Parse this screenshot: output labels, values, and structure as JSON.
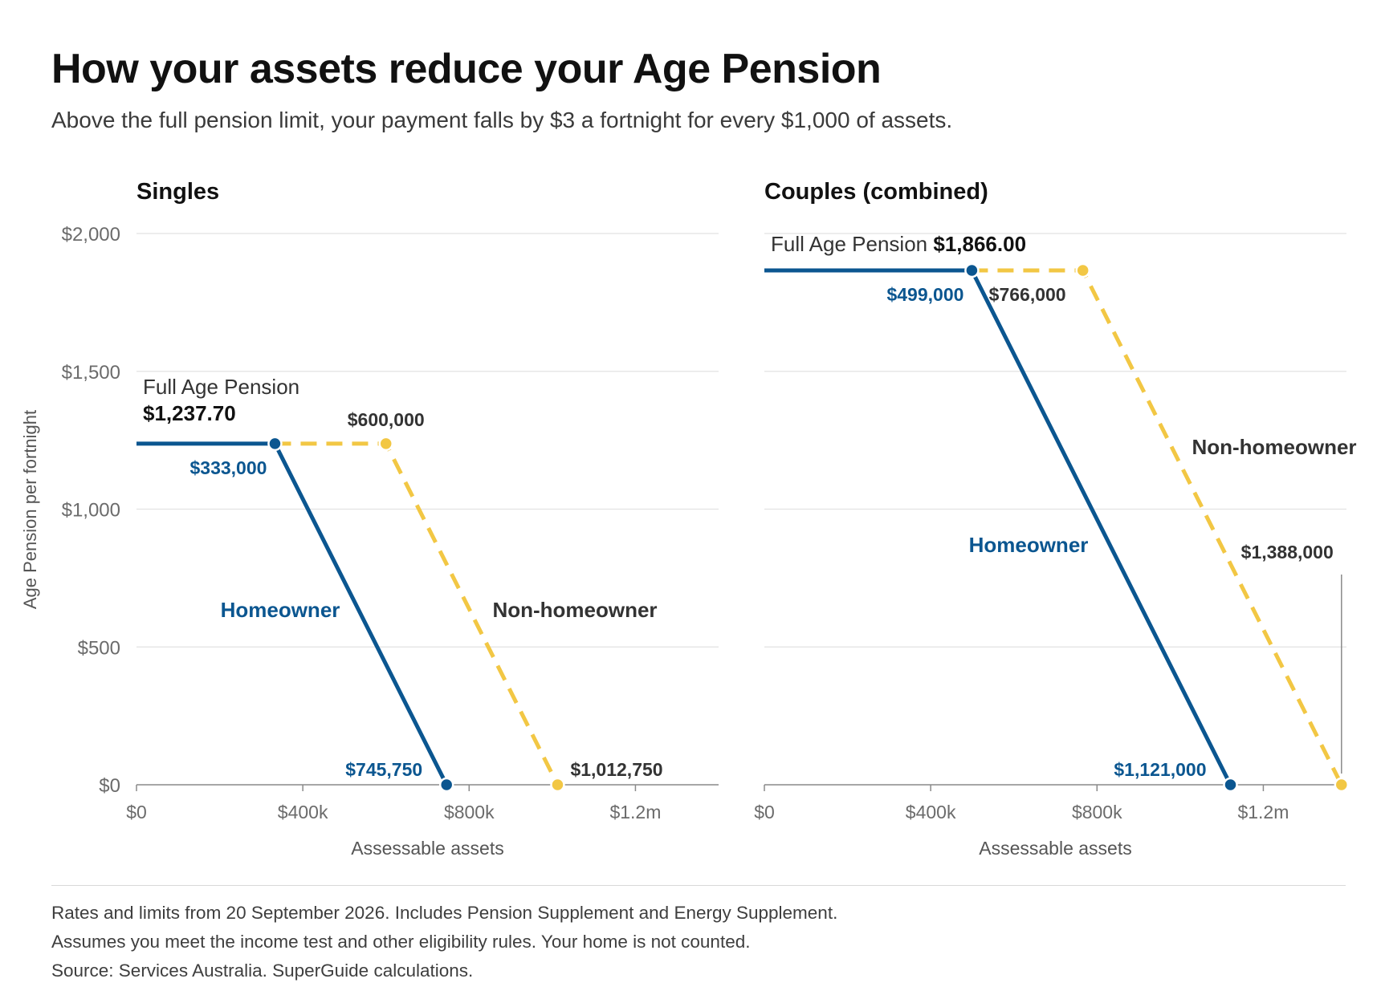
{
  "title": "How your assets reduce your Age Pension",
  "subtitle": "Above the full pension limit, your payment falls by $3 a fortnight for every $1,000 of assets.",
  "ylabel": "Age Pension per fortnight",
  "notes": [
    "Rates and limits from 20 September 2026. Includes Pension Supplement and Energy Supplement.",
    "Assumes you meet the income test and other eligibility rules. Your home is not counted.",
    "Source: Services Australia. SuperGuide calculations."
  ],
  "colors": {
    "homeowner": "#0b5690",
    "non_homeowner": "#f2c744",
    "text": "#111111",
    "muted": "#6b6b6b",
    "grid": "#e2e2e2"
  },
  "chart_data": [
    {
      "type": "line",
      "title": "Singles",
      "xlabel": "Assessable assets",
      "ylabel": "Age Pension per fortnight",
      "xlim": [
        0,
        1400000
      ],
      "ylim": [
        0,
        2000
      ],
      "xticks": [
        0,
        400000,
        800000,
        1200000
      ],
      "xtick_labels": [
        "$0",
        "$400k",
        "$800k",
        "$1.2m"
      ],
      "yticks": [
        0,
        500,
        1000,
        1500,
        2000
      ],
      "ytick_labels": [
        "$0",
        "$500",
        "$1,000",
        "$1,500",
        "$2,000"
      ],
      "grid": true,
      "full_pension": 1237.7,
      "full_pension_label": "Full Age Pension",
      "full_pension_value_label": "$1,237.70",
      "series": [
        {
          "name": "Homeowner",
          "style": "solid",
          "x": [
            0,
            333000,
            745750
          ],
          "y": [
            1237.7,
            1237.7,
            0
          ],
          "threshold_label": "$333,000",
          "cutoff_label": "$745,750"
        },
        {
          "name": "Non-homeowner",
          "style": "dashed",
          "x": [
            333000,
            600000,
            1012750
          ],
          "y": [
            1237.7,
            1237.7,
            0
          ],
          "threshold_label": "$600,000",
          "cutoff_label": "$1,012,750"
        }
      ]
    },
    {
      "type": "line",
      "title": "Couples (combined)",
      "xlabel": "Assessable assets",
      "ylabel": "",
      "xlim": [
        0,
        1400000
      ],
      "ylim": [
        0,
        2000
      ],
      "xticks": [
        0,
        400000,
        800000,
        1200000
      ],
      "xtick_labels": [
        "$0",
        "$400k",
        "$800k",
        "$1.2m"
      ],
      "yticks": [
        0,
        500,
        1000,
        1500,
        2000
      ],
      "ytick_labels": [],
      "grid": true,
      "full_pension": 1866.0,
      "full_pension_label": "Full Age Pension",
      "full_pension_value_label": "$1,866.00",
      "series": [
        {
          "name": "Homeowner",
          "style": "solid",
          "x": [
            0,
            499000,
            1121000
          ],
          "y": [
            1866.0,
            1866.0,
            0
          ],
          "threshold_label": "$499,000",
          "cutoff_label": "$1,121,000"
        },
        {
          "name": "Non-homeowner",
          "style": "dashed",
          "x": [
            499000,
            766000,
            1388000
          ],
          "y": [
            1866.0,
            1866.0,
            0
          ],
          "threshold_label": "$766,000",
          "cutoff_label": "$1,388,000"
        }
      ]
    }
  ]
}
